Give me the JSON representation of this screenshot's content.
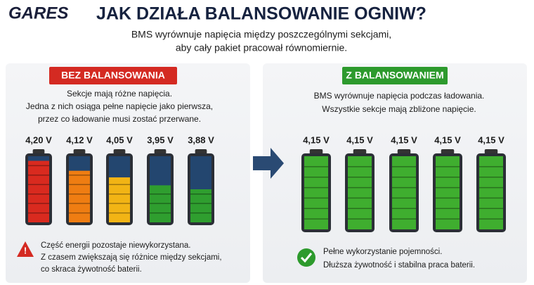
{
  "header": {
    "logo": "GARES",
    "title": "JAK DZIAŁA BALANSOWANIE OGNIW?",
    "subtitle": [
      "BMS wyrównuje napięcia między poszczególnymi sekcjami,",
      "aby cały pakiet pracował równomiernie."
    ]
  },
  "left": {
    "badge": "BEZ BALANSOWANIA",
    "description": [
      "Sekcje mają różne napięcia.",
      "Jedna z nich osiąga pełne napięcie jako pierwsza,",
      "przez co ładowanie musi zostać przerwane."
    ],
    "cells": [
      "4,20 V",
      "4,12 V",
      "4,05 V",
      "3,95 V",
      "3,88 V"
    ],
    "note": [
      "Część energii pozostaje niewykorzystana.",
      "Z czasem zwiększają się różnice między sekcjami,",
      "co skraca żywotność baterii."
    ]
  },
  "right": {
    "badge": "Z BALANSOWANIEM",
    "description": [
      "BMS wyrównuje napięcia podczas ładowania.",
      "Wszystkie sekcje mają zbliżone napięcie."
    ],
    "cells": [
      "4,15 V",
      "4,15 V",
      "4,15 V",
      "4,15 V",
      "4,15 V"
    ],
    "note": [
      "Pełne wykorzystanie pojemności.",
      "Dłuższa żywotność i stabilna praca baterii."
    ]
  }
}
